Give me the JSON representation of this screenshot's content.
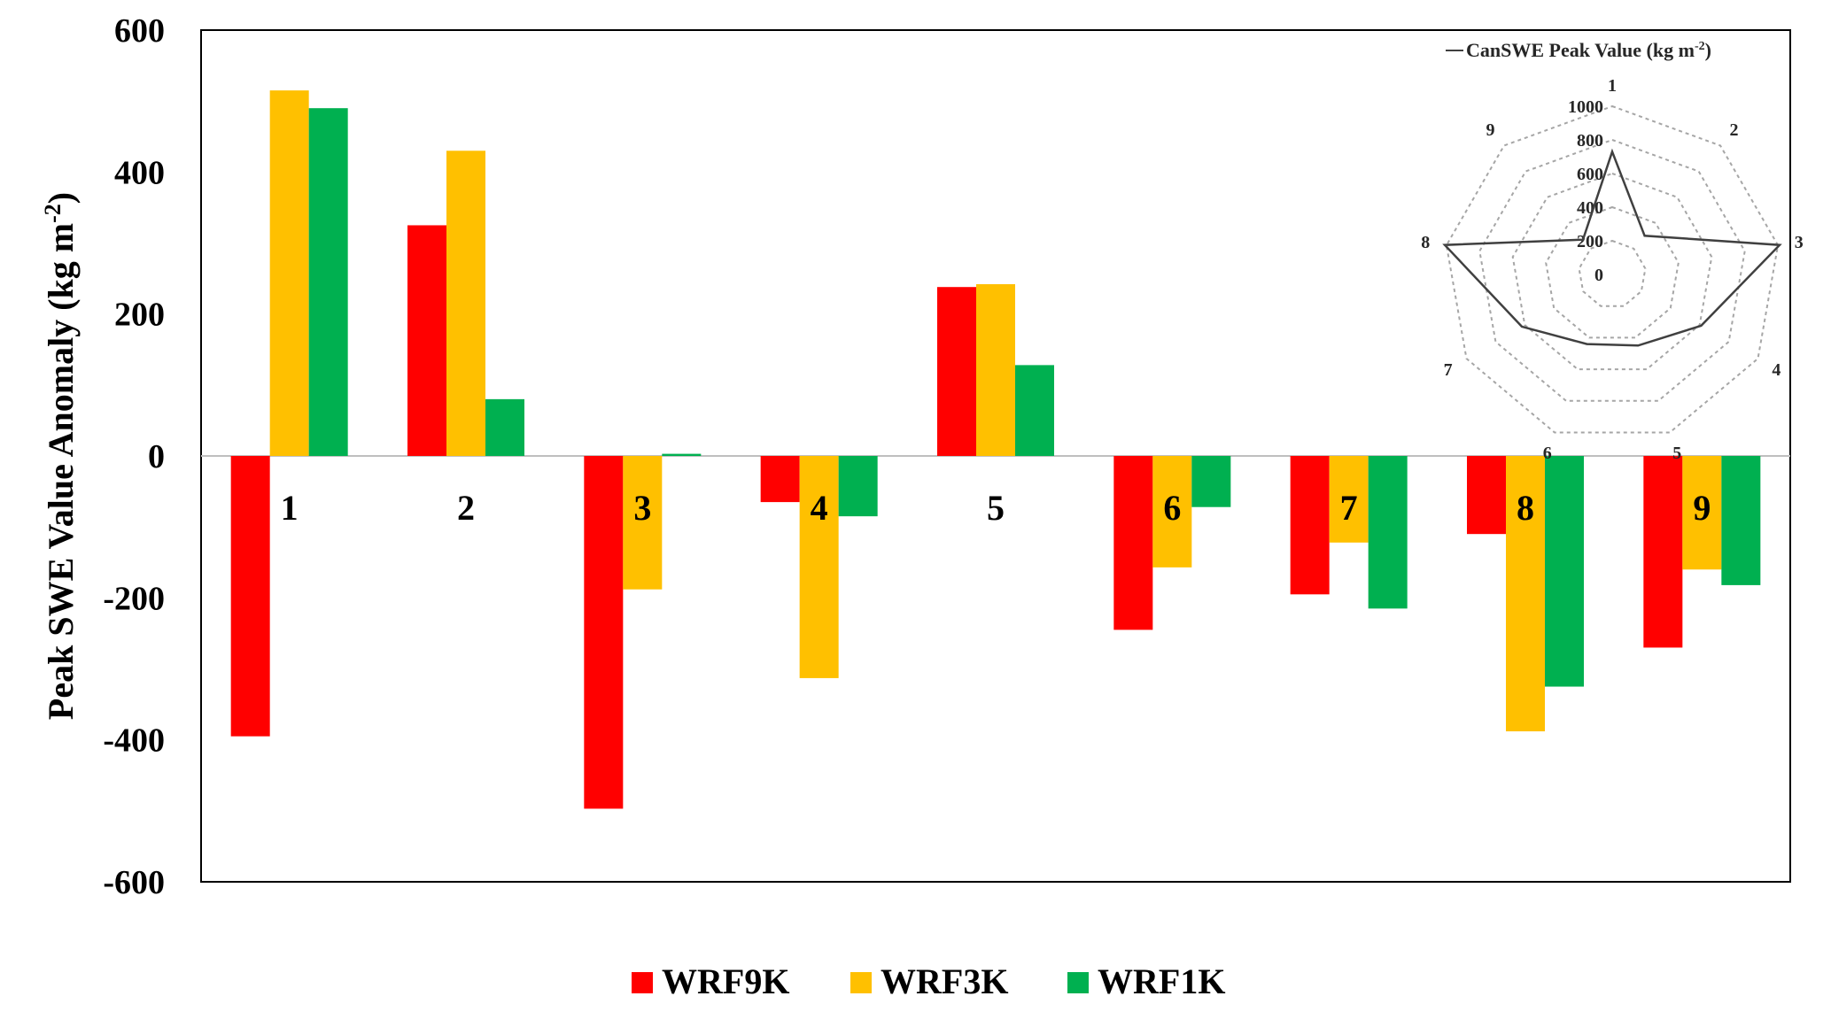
{
  "chart_data": [
    {
      "type": "bar",
      "ylabel_main": "Peak SWE Value Anomaly (kg m",
      "ylabel_sup": "-2",
      "ylabel_close": ")",
      "ylim": [
        -600,
        600
      ],
      "yticks": [
        "600",
        "400",
        "200",
        "0",
        "-200",
        "-400",
        "-600"
      ],
      "ytick_values": [
        600,
        400,
        200,
        0,
        -200,
        -400,
        -600
      ],
      "grid": false,
      "legend_position": "bottom-center",
      "categories": [
        "1",
        "2",
        "3",
        "4",
        "5",
        "6",
        "7",
        "8",
        "9"
      ],
      "series": [
        {
          "name": "WRF9K",
          "color": "#ff0000",
          "values": [
            -395,
            325,
            -497,
            -65,
            238,
            -245,
            -195,
            -110,
            -270
          ]
        },
        {
          "name": "WRF3K",
          "color": "#ffc000",
          "values": [
            515,
            430,
            -188,
            -313,
            242,
            -157,
            -122,
            -388,
            -160
          ]
        },
        {
          "name": "WRF1K",
          "color": "#00b050",
          "values": [
            490,
            80,
            3,
            -85,
            128,
            -72,
            -215,
            -325,
            -182
          ]
        }
      ]
    },
    {
      "type": "radar",
      "legend_label": "CanSWE Peak Value (kg m",
      "legend_sup": "-2",
      "legend_close": ")",
      "categories": [
        "1",
        "2",
        "3",
        "4",
        "5",
        "6",
        "7",
        "8",
        "9"
      ],
      "ticks": [
        "0",
        "200",
        "400",
        "600",
        "800",
        "1000"
      ],
      "tick_values": [
        0,
        200,
        400,
        600,
        800,
        1000
      ],
      "rmax": 1000,
      "line_color": "#404040",
      "values": [
        730,
        300,
        1010,
        610,
        450,
        440,
        620,
        1010,
        270
      ]
    }
  ]
}
